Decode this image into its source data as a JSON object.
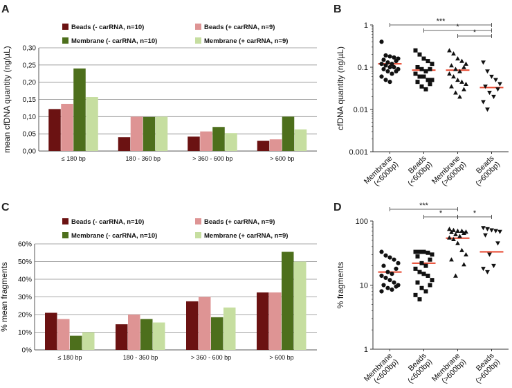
{
  "chart_data": [
    {
      "panel": "A",
      "type": "bar",
      "ylabel": "mean cfDNA quantity (ng/µL)",
      "ylim": [
        0,
        0.3
      ],
      "yticks": [
        "0,00",
        "0,05",
        "0,10",
        "0,15",
        "0,20",
        "0,25",
        "0,30"
      ],
      "categories": [
        "≤ 180 bp",
        "180 - 360 bp",
        "> 360 - 600 bp",
        "> 600 bp"
      ],
      "series": [
        {
          "name": "Beads (- carRNA, n=10)",
          "color": "#6b1212",
          "values": [
            0.122,
            0.04,
            0.042,
            0.03
          ]
        },
        {
          "name": "Beads (+ carRNA, n=9)",
          "color": "#de9494",
          "values": [
            0.137,
            0.1,
            0.057,
            0.034
          ]
        },
        {
          "name": "Membrane (- carRNA, n=10)",
          "color": "#4d6f1c",
          "values": [
            0.24,
            0.099,
            0.07,
            0.1
          ]
        },
        {
          "name": "Membrane (+ carRNA, n=9)",
          "color": "#c6dea0",
          "values": [
            0.157,
            0.1,
            0.052,
            0.063
          ]
        }
      ],
      "grid": true,
      "legend": "top"
    },
    {
      "panel": "B",
      "type": "scatter",
      "ylabel": "cfDNA quantity (ng/µL)",
      "yscale": "log",
      "ylim": [
        0.001,
        1
      ],
      "yticks": [
        "0.001",
        "0.01",
        "0.1",
        "1"
      ],
      "categories": [
        "Membrane\n(<600bp)",
        "Beads\n(<600bp)",
        "Membrane\n(>600bp)",
        "Beads\n(>600bp)"
      ],
      "markers": [
        "circle",
        "square",
        "triangle-up",
        "triangle-down"
      ],
      "median_color": "#e8452c",
      "medians": [
        0.12,
        0.085,
        0.085,
        0.033
      ],
      "groups": [
        [
          0.4,
          0.19,
          0.18,
          0.17,
          0.16,
          0.15,
          0.14,
          0.13,
          0.12,
          0.12,
          0.11,
          0.1,
          0.1,
          0.09,
          0.09,
          0.08,
          0.08,
          0.07,
          0.06,
          0.05,
          0.045
        ],
        [
          0.25,
          0.2,
          0.16,
          0.14,
          0.12,
          0.1,
          0.09,
          0.09,
          0.08,
          0.07,
          0.06,
          0.06,
          0.05,
          0.05,
          0.045,
          0.04,
          0.035,
          0.03
        ],
        [
          0.25,
          0.21,
          0.16,
          0.14,
          0.12,
          0.11,
          0.1,
          0.09,
          0.08,
          0.07,
          0.06,
          0.05,
          0.045,
          0.04,
          0.035,
          0.03,
          0.025,
          0.02
        ],
        [
          0.13,
          0.08,
          0.06,
          0.05,
          0.04,
          0.035,
          0.03,
          0.025,
          0.02,
          0.015,
          0.01
        ]
      ],
      "significance": [
        {
          "from": 0,
          "to": 3,
          "label": "***"
        },
        {
          "from": 1,
          "to": 3,
          "label": "*"
        },
        {
          "from": 2,
          "to": 3,
          "label": "*"
        }
      ]
    },
    {
      "panel": "C",
      "type": "bar",
      "ylabel": "% mean fragments",
      "ylim": [
        0,
        60
      ],
      "yticks": [
        "0%",
        "10%",
        "20%",
        "30%",
        "40%",
        "50%",
        "60%"
      ],
      "categories": [
        "≤ 180 bp",
        "180 - 360 bp",
        "> 360 - 600 bp",
        "> 600 bp"
      ],
      "series": [
        {
          "name": "Beads (- carRNA, n=10)",
          "color": "#6b1212",
          "values": [
            21,
            14.5,
            27.5,
            32.5
          ]
        },
        {
          "name": "Beads (+ carRNA, n=9)",
          "color": "#de9494",
          "values": [
            17.5,
            20,
            30,
            32.5
          ]
        },
        {
          "name": "Membrane (- carRNA, n=10)",
          "color": "#4d6f1c",
          "values": [
            8,
            17.5,
            18.5,
            55.5
          ]
        },
        {
          "name": "Membrane (+ carRNA, n=9)",
          "color": "#c6dea0",
          "values": [
            10,
            15.5,
            24,
            50
          ]
        }
      ],
      "grid": true,
      "legend": "top"
    },
    {
      "panel": "D",
      "type": "scatter",
      "ylabel": "% fragments",
      "yscale": "log",
      "ylim": [
        1,
        100
      ],
      "yticks": [
        "1",
        "10",
        "100"
      ],
      "categories": [
        "Membrane\n(<600bp)",
        "Beads\n(<600bp)",
        "Membrane\n(>600bp)",
        "Beads\n(>600bp)"
      ],
      "markers": [
        "circle",
        "square",
        "triangle-up",
        "triangle-down"
      ],
      "median_color": "#e8452c",
      "medians": [
        16,
        22,
        54,
        33
      ],
      "groups": [
        [
          33,
          29,
          27,
          25,
          22,
          20,
          18,
          16,
          15,
          14,
          13,
          12,
          11,
          10,
          10,
          9.5,
          9,
          8.5,
          8
        ],
        [
          33,
          33,
          33,
          32,
          30,
          28,
          25,
          22,
          20,
          18,
          16,
          15,
          14,
          12,
          11,
          10,
          9,
          8,
          7,
          6
        ],
        [
          75,
          72,
          70,
          70,
          68,
          67,
          65,
          62,
          58,
          55,
          52,
          45,
          35,
          30,
          25,
          21,
          14
        ],
        [
          78,
          75,
          72,
          70,
          68,
          60,
          45,
          30,
          20,
          18,
          16
        ]
      ],
      "significance": [
        {
          "from": 0,
          "to": 2,
          "label": "***"
        },
        {
          "from": 1,
          "to": 2,
          "label": "*"
        },
        {
          "from": 2,
          "to": 3,
          "label": "*"
        }
      ]
    }
  ]
}
